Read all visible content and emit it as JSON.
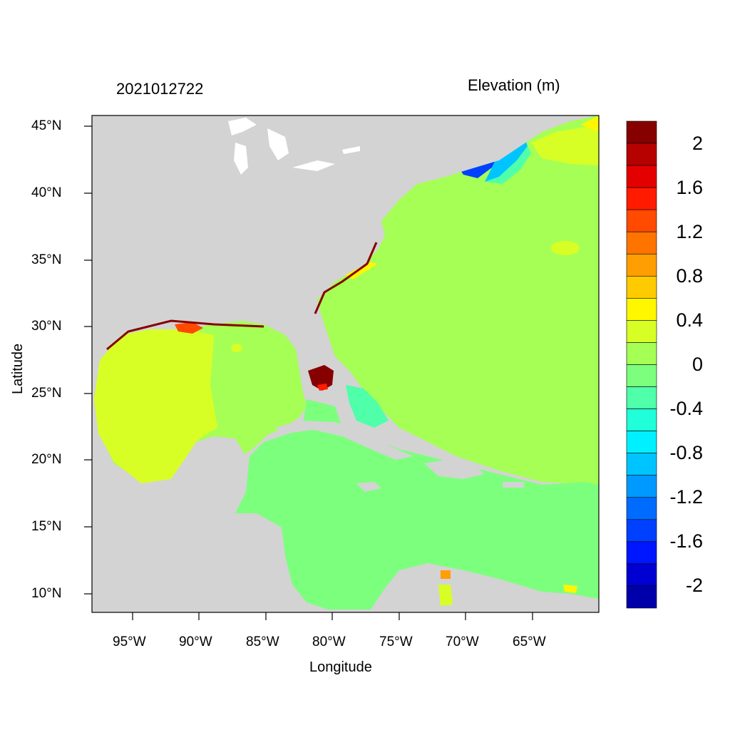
{
  "title_left": "2021012722",
  "title_right": "Elevation (m)",
  "xlabel": "Longitude",
  "ylabel": "Latitude",
  "lat_ticks": [
    "45°N",
    "40°N",
    "35°N",
    "30°N",
    "25°N",
    "20°N",
    "15°N",
    "10°N"
  ],
  "lon_ticks": [
    "95°W",
    "90°W",
    "85°W",
    "80°W",
    "75°W",
    "70°W",
    "65°W"
  ],
  "colorbar": {
    "labels": [
      "2",
      "1.6",
      "1.2",
      "0.8",
      "0.4",
      "0",
      "-0.4",
      "-0.8",
      "-1.2",
      "-1.6",
      "-2"
    ],
    "colors": [
      "#870000",
      "#b70000",
      "#e50000",
      "#ff1a00",
      "#ff4a00",
      "#ff7400",
      "#ff9e00",
      "#ffcb00",
      "#fff700",
      "#d8ff25",
      "#a6ff55",
      "#7dff7e",
      "#4fffaa",
      "#20ffd9",
      "#00f0ff",
      "#00c4ff",
      "#0099ff",
      "#006cff",
      "#0040ff",
      "#0016ff",
      "#0000d2",
      "#0000aa"
    ]
  },
  "colors": {
    "land": "#d3d3d3",
    "water_white": "#ffffff",
    "frame": "#000000"
  }
}
